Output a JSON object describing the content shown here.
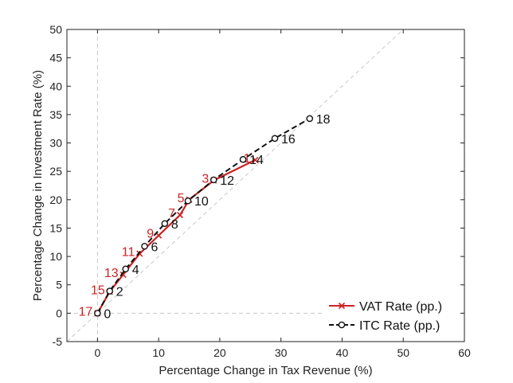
{
  "chart_data": {
    "type": "line",
    "xlabel": "Percentage Change in Tax Revenue (%)",
    "ylabel": "Percentage Change in Investment Rate (%)",
    "xlim": [
      -5,
      60
    ],
    "ylim": [
      -5,
      50
    ],
    "xticks": [
      0,
      10,
      20,
      30,
      40,
      50,
      60
    ],
    "yticks": [
      -5,
      0,
      5,
      10,
      15,
      20,
      25,
      30,
      35,
      40,
      45,
      50
    ],
    "xtick_labels": [
      "0",
      "10",
      "20",
      "30",
      "40",
      "50",
      "60"
    ],
    "ytick_labels": [
      "-5",
      "0",
      "5",
      "10",
      "15",
      "20",
      "25",
      "30",
      "35",
      "40",
      "45",
      "50"
    ],
    "grid": false,
    "reference_lines": [
      "x = 0",
      "y = 0",
      "45-degree line y = x"
    ],
    "legend_position": "bottom-right",
    "series": [
      {
        "name": "VAT Rate (pp.)",
        "color": "#cc2222",
        "style": "solid",
        "marker": "x",
        "points": [
          {
            "label": "17",
            "x": 0,
            "y": 0
          },
          {
            "label": "15",
            "x": 2.0,
            "y": 3.8
          },
          {
            "label": "13",
            "x": 4.2,
            "y": 6.8
          },
          {
            "label": "11",
            "x": 6.9,
            "y": 10.5
          },
          {
            "label": "9",
            "x": 10.0,
            "y": 13.7
          },
          {
            "label": "7",
            "x": 13.5,
            "y": 17.3
          },
          {
            "label": "5",
            "x": 15.0,
            "y": 20.0
          },
          {
            "label": "3",
            "x": 19.0,
            "y": 23.4
          },
          {
            "label": "1",
            "x": 25.8,
            "y": 27.0
          }
        ]
      },
      {
        "name": "ITC Rate (pp.)",
        "color": "#111111",
        "style": "dashed",
        "marker": "o",
        "points": [
          {
            "label": "0",
            "x": 0,
            "y": 0
          },
          {
            "label": "2",
            "x": 2.0,
            "y": 3.9
          },
          {
            "label": "4",
            "x": 4.6,
            "y": 7.8
          },
          {
            "label": "6",
            "x": 7.7,
            "y": 11.8
          },
          {
            "label": "8",
            "x": 11.0,
            "y": 15.8
          },
          {
            "label": "10",
            "x": 14.8,
            "y": 19.8
          },
          {
            "label": "12",
            "x": 19.0,
            "y": 23.5
          },
          {
            "label": "14",
            "x": 23.8,
            "y": 27.1
          },
          {
            "label": "16",
            "x": 29.0,
            "y": 30.8
          },
          {
            "label": "18",
            "x": 34.7,
            "y": 34.3
          }
        ]
      }
    ]
  }
}
